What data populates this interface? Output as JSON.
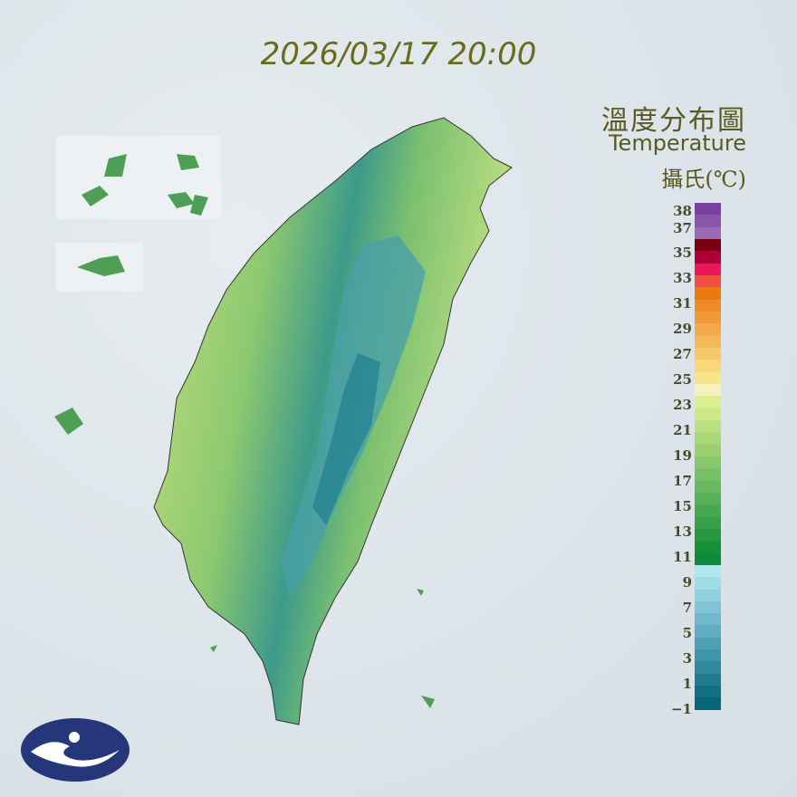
{
  "timestamp": "2026/03/17 20:00",
  "legend": {
    "title_zh": "溫度分布圖",
    "title_en": "Temperature",
    "unit": "攝氏(℃)",
    "ticks": [
      "38",
      "37",
      "35",
      "33",
      "31",
      "29",
      "27",
      "25",
      "23",
      "21",
      "19",
      "17",
      "15",
      "13",
      "11",
      "9",
      "7",
      "5",
      "3",
      "1",
      "−1"
    ],
    "colors": [
      "#7b3fa0",
      "#8b55a8",
      "#9b6ab5",
      "#7a0010",
      "#b0003a",
      "#e8185a",
      "#f05040",
      "#e87a10",
      "#ef8a2a",
      "#f09a3a",
      "#f2aa4a",
      "#f4ba5a",
      "#f6c868",
      "#f8d878",
      "#f8e48a",
      "#f6f2c0",
      "#dcef90",
      "#cce888",
      "#bce080",
      "#a8d878",
      "#98d070",
      "#88c86c",
      "#78c068",
      "#68b860",
      "#58b058",
      "#48a850",
      "#38a048",
      "#289840",
      "#189038",
      "#0d8a3a",
      "#b0e8f0",
      "#a0dce8",
      "#90d0e0",
      "#80c4d8",
      "#70b8cc",
      "#60acc0",
      "#50a0b4",
      "#4094a8",
      "#30889c",
      "#207c90",
      "#107084",
      "#086678"
    ]
  },
  "logo": "cwa-logo"
}
